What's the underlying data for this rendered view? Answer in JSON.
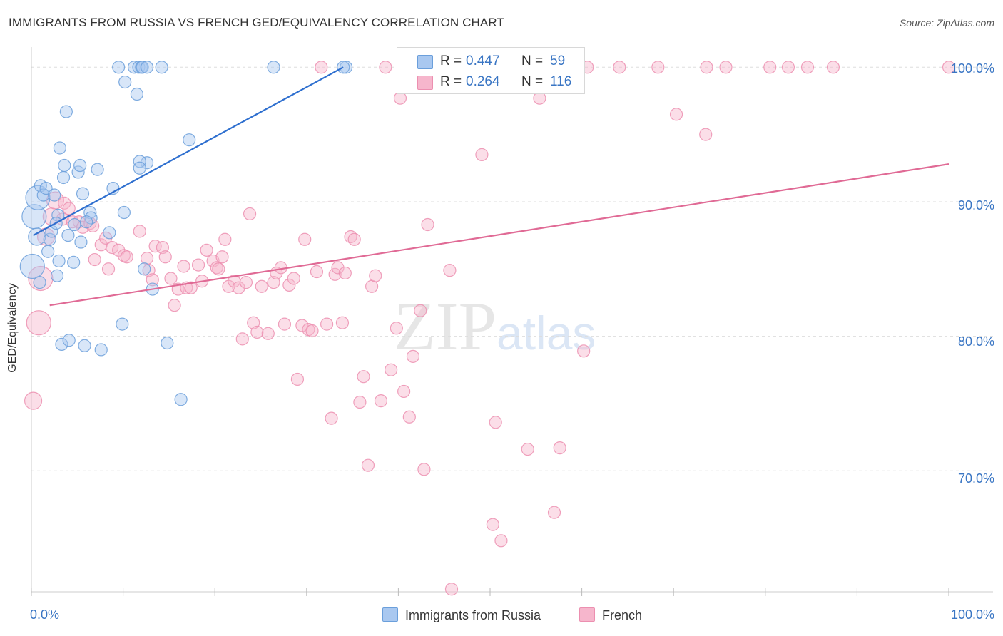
{
  "title": "IMMIGRANTS FROM RUSSIA VS FRENCH GED/EQUIVALENCY CORRELATION CHART",
  "source": "Source: ZipAtlas.com",
  "watermark": {
    "zip": "ZIP",
    "atlas": "atlas"
  },
  "colors": {
    "russia_fill": "#a9c8f0",
    "russia_stroke": "#6b9fdb",
    "russia_line": "#2e6fcf",
    "french_fill": "#f6b6cc",
    "french_stroke": "#ec8fb0",
    "french_line": "#e06a95",
    "grid": "#dddddd",
    "tick_text": "#3a76c4"
  },
  "legend_top": {
    "rows": [
      {
        "r_label": "R =",
        "r_value": "0.447",
        "n_label": "N =",
        "n_value": "59"
      },
      {
        "r_label": "R =",
        "r_value": "0.264",
        "n_label": "N =",
        "n_value": "116"
      }
    ]
  },
  "legend_bottom": {
    "series1": "Immigrants from Russia",
    "series2": "French"
  },
  "chart_data": {
    "type": "scatter",
    "title": "IMMIGRANTS FROM RUSSIA VS FRENCH GED/EQUIVALENCY CORRELATION CHART",
    "xlabel": "",
    "ylabel": "GED/Equivalency",
    "xlim": [
      0,
      100
    ],
    "ylim": [
      61,
      101.5
    ],
    "x_tick_labels": [
      "0.0%",
      "100.0%"
    ],
    "y_ticks": [
      70,
      80,
      90,
      100
    ],
    "y_tick_labels": [
      "70.0%",
      "80.0%",
      "90.0%",
      "100.0%"
    ],
    "grid": true,
    "series": [
      {
        "name": "Immigrants from Russia",
        "r": 0.447,
        "n": 59,
        "trend": {
          "x": [
            0.2,
            34
          ],
          "y": [
            87.5,
            100
          ]
        },
        "points": [
          [
            0.1,
            85.2,
            3
          ],
          [
            0.3,
            88.9,
            2
          ],
          [
            0.6,
            87.4,
            1.5
          ],
          [
            0.7,
            90.3,
            2
          ],
          [
            0.9,
            84.0,
            1
          ],
          [
            1.0,
            91.2,
            1
          ],
          [
            1.3,
            90.5,
            1
          ],
          [
            1.6,
            91.0,
            1
          ],
          [
            1.8,
            86.3,
            1
          ],
          [
            2.0,
            87.2,
            1
          ],
          [
            2.2,
            87.8,
            1
          ],
          [
            2.5,
            90.5,
            1
          ],
          [
            2.8,
            84.5,
            1
          ],
          [
            2.9,
            89.0,
            1
          ],
          [
            3.0,
            85.6,
            1
          ],
          [
            3.1,
            94.0,
            1
          ],
          [
            3.3,
            79.4,
            1
          ],
          [
            3.5,
            91.8,
            1
          ],
          [
            3.6,
            92.7,
            1
          ],
          [
            3.8,
            96.7,
            1
          ],
          [
            4.0,
            87.5,
            1
          ],
          [
            4.1,
            79.7,
            1
          ],
          [
            4.6,
            85.5,
            1
          ],
          [
            4.7,
            88.3,
            1
          ],
          [
            5.1,
            92.2,
            1
          ],
          [
            5.3,
            92.7,
            1
          ],
          [
            5.4,
            87.0,
            1
          ],
          [
            5.6,
            90.6,
            1
          ],
          [
            5.8,
            79.3,
            1
          ],
          [
            6.4,
            89.2,
            1
          ],
          [
            6.5,
            88.8,
            1
          ],
          [
            7.2,
            92.4,
            1
          ],
          [
            7.6,
            79.0,
            1
          ],
          [
            8.5,
            87.7,
            1
          ],
          [
            8.9,
            91.0,
            1
          ],
          [
            9.5,
            100,
            1
          ],
          [
            9.9,
            80.9,
            1
          ],
          [
            10.1,
            89.2,
            1
          ],
          [
            10.2,
            98.9,
            1
          ],
          [
            11.2,
            100,
            1
          ],
          [
            11.5,
            98.0,
            1
          ],
          [
            11.7,
            100,
            1
          ],
          [
            12.0,
            100,
            1
          ],
          [
            12.1,
            100,
            1
          ],
          [
            12.6,
            92.9,
            1
          ],
          [
            11.8,
            93.0,
            1
          ],
          [
            11.8,
            92.5,
            1
          ],
          [
            12.6,
            100,
            1
          ],
          [
            14.2,
            100,
            1
          ],
          [
            13.2,
            83.5,
            1
          ],
          [
            16.3,
            75.3,
            1
          ],
          [
            17.2,
            94.6,
            1
          ],
          [
            26.4,
            100,
            1
          ],
          [
            34.3,
            100,
            1
          ],
          [
            34.0,
            100,
            1
          ],
          [
            14.8,
            79.5,
            0.01
          ],
          [
            12.3,
            85.0,
            1
          ],
          [
            6.0,
            88.5,
            1
          ],
          [
            2.7,
            88.4,
            1
          ]
        ]
      },
      {
        "name": "French",
        "r": 0.264,
        "n": 116,
        "trend": {
          "x": [
            2,
            100
          ],
          "y": [
            82.3,
            92.8
          ]
        },
        "points": [
          [
            0.2,
            75.2,
            1.5
          ],
          [
            0.8,
            81.0,
            2
          ],
          [
            1.0,
            84.3,
            2
          ],
          [
            1.6,
            87.4,
            1.5
          ],
          [
            2.2,
            88.9,
            1.5
          ],
          [
            2.6,
            90.1,
            1.5
          ],
          [
            3.4,
            88.7,
            1
          ],
          [
            3.6,
            89.9,
            1
          ],
          [
            4.1,
            89.5,
            1
          ],
          [
            4.5,
            88.5,
            1
          ],
          [
            5.2,
            88.5,
            1
          ],
          [
            5.6,
            88.1,
            1
          ],
          [
            6.4,
            88.4,
            1
          ],
          [
            6.7,
            88.2,
            1
          ],
          [
            6.9,
            85.7,
            1
          ],
          [
            7.6,
            86.8,
            1
          ],
          [
            8.1,
            87.3,
            1
          ],
          [
            8.4,
            85.0,
            1
          ],
          [
            8.8,
            86.6,
            1
          ],
          [
            9.5,
            86.4,
            1
          ],
          [
            10.1,
            86.0,
            1
          ],
          [
            10.4,
            85.9,
            1
          ],
          [
            11.8,
            87.8,
            1
          ],
          [
            12.6,
            85.8,
            1
          ],
          [
            12.8,
            84.9,
            1
          ],
          [
            13.2,
            84.2,
            1
          ],
          [
            13.5,
            86.7,
            1
          ],
          [
            14.3,
            86.6,
            1
          ],
          [
            14.6,
            85.9,
            1
          ],
          [
            15.2,
            84.3,
            1
          ],
          [
            15.6,
            82.3,
            1
          ],
          [
            16.0,
            83.5,
            1
          ],
          [
            16.6,
            85.2,
            1
          ],
          [
            16.9,
            83.6,
            1
          ],
          [
            17.4,
            83.6,
            1
          ],
          [
            18.2,
            85.3,
            1
          ],
          [
            18.6,
            84.1,
            1
          ],
          [
            19.1,
            86.4,
            1
          ],
          [
            19.8,
            85.6,
            1
          ],
          [
            20.2,
            85.1,
            1
          ],
          [
            20.4,
            85.0,
            1
          ],
          [
            20.8,
            85.9,
            1
          ],
          [
            21.1,
            87.2,
            1
          ],
          [
            21.5,
            83.7,
            1
          ],
          [
            22.1,
            84.1,
            1
          ],
          [
            22.6,
            83.6,
            1
          ],
          [
            23.0,
            79.8,
            1
          ],
          [
            23.4,
            84.0,
            1
          ],
          [
            23.8,
            89.1,
            1
          ],
          [
            24.2,
            81.0,
            1
          ],
          [
            24.6,
            80.3,
            1
          ],
          [
            25.1,
            83.7,
            1
          ],
          [
            25.8,
            80.2,
            1
          ],
          [
            26.4,
            84.0,
            1
          ],
          [
            26.7,
            84.7,
            1
          ],
          [
            27.2,
            85.1,
            1
          ],
          [
            27.6,
            80.9,
            1
          ],
          [
            28.1,
            83.8,
            1
          ],
          [
            28.6,
            84.3,
            1
          ],
          [
            29.0,
            76.8,
            1
          ],
          [
            29.5,
            80.8,
            1
          ],
          [
            29.8,
            87.2,
            1
          ],
          [
            30.2,
            80.5,
            1
          ],
          [
            30.6,
            80.4,
            1
          ],
          [
            31.1,
            84.8,
            1
          ],
          [
            31.6,
            100,
            1
          ],
          [
            32.2,
            80.9,
            1
          ],
          [
            32.7,
            73.9,
            1
          ],
          [
            33.1,
            84.6,
            1
          ],
          [
            33.4,
            85.1,
            1
          ],
          [
            33.9,
            81.0,
            1
          ],
          [
            34.2,
            84.7,
            1
          ],
          [
            34.8,
            87.4,
            1
          ],
          [
            35.2,
            87.2,
            1
          ],
          [
            35.8,
            75.1,
            1
          ],
          [
            36.2,
            77.0,
            1
          ],
          [
            36.7,
            70.4,
            1
          ],
          [
            37.1,
            83.7,
            1
          ],
          [
            37.5,
            84.5,
            1
          ],
          [
            38.1,
            75.2,
            1
          ],
          [
            38.6,
            100,
            1
          ],
          [
            39.2,
            77.5,
            1
          ],
          [
            39.8,
            80.6,
            1
          ],
          [
            40.2,
            97.7,
            1
          ],
          [
            40.6,
            75.9,
            1
          ],
          [
            41.2,
            74.0,
            1
          ],
          [
            41.6,
            78.5,
            1
          ],
          [
            42.4,
            81.9,
            1
          ],
          [
            42.8,
            70.1,
            1
          ],
          [
            43.2,
            88.3,
            1
          ],
          [
            45.8,
            61.2,
            1
          ],
          [
            45.6,
            84.9,
            1
          ],
          [
            46.8,
            100,
            1
          ],
          [
            49.1,
            93.5,
            1
          ],
          [
            50.3,
            66.0,
            1
          ],
          [
            50.6,
            73.6,
            1
          ],
          [
            51.2,
            64.8,
            1
          ],
          [
            54.1,
            71.6,
            1
          ],
          [
            55.4,
            97.7,
            1
          ],
          [
            55.8,
            100,
            1
          ],
          [
            57.0,
            66.9,
            1
          ],
          [
            57.6,
            71.7,
            1
          ],
          [
            60.2,
            78.9,
            1
          ],
          [
            60.6,
            100,
            1
          ],
          [
            64.1,
            100,
            1
          ],
          [
            68.3,
            100,
            1
          ],
          [
            70.3,
            96.5,
            1
          ],
          [
            73.5,
            95.0,
            1
          ],
          [
            73.6,
            100,
            1
          ],
          [
            75.7,
            100,
            1
          ],
          [
            80.5,
            100,
            1
          ],
          [
            82.5,
            100,
            1
          ],
          [
            84.6,
            100,
            1
          ],
          [
            87.4,
            100,
            1
          ],
          [
            100,
            100,
            1
          ]
        ]
      }
    ]
  }
}
